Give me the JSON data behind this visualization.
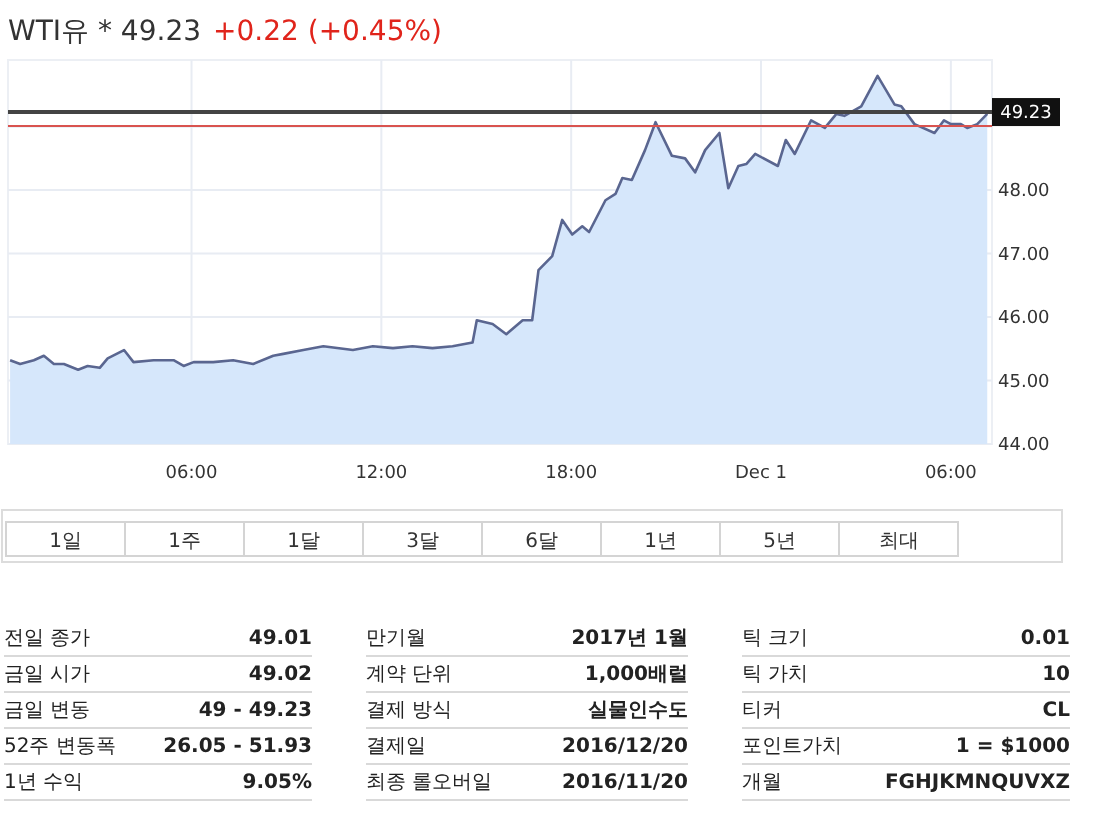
{
  "chart_data": {
    "type": "area",
    "title": "WTI유 * 49.23",
    "subtitle": "+0.22 (+0.45%)",
    "x": [
      "2016-11-30T00:16",
      "2016-11-30T00:35",
      "2016-11-30T01:01",
      "2016-11-30T01:20",
      "2016-11-30T01:39",
      "2016-11-30T01:58",
      "2016-11-30T02:25",
      "2016-11-30T02:43",
      "2016-11-30T03:06",
      "2016-11-30T03:21",
      "2016-11-30T03:52",
      "2016-11-30T04:10",
      "2016-11-30T04:48",
      "2016-11-30T05:26",
      "2016-11-30T05:45",
      "2016-11-30T06:04",
      "2016-11-30T06:41",
      "2016-11-30T07:19",
      "2016-11-30T07:57",
      "2016-11-30T08:35",
      "2016-11-30T08:54",
      "2016-11-30T09:32",
      "2016-11-30T10:10",
      "2016-11-30T11:06",
      "2016-11-30T11:44",
      "2016-11-30T12:22",
      "2016-11-30T12:59",
      "2016-11-30T13:37",
      "2016-11-30T14:15",
      "2016-11-30T14:53",
      "2016-11-30T15:01",
      "2016-11-30T15:31",
      "2016-11-30T15:57",
      "2016-11-30T16:28",
      "2016-11-30T16:46",
      "2016-11-30T16:58",
      "2016-11-30T17:24",
      "2016-11-30T17:43",
      "2016-11-30T18:02",
      "2016-11-30T18:21",
      "2016-11-30T18:34",
      "2016-11-30T19:05",
      "2016-11-30T19:24",
      "2016-11-30T19:37",
      "2016-11-30T19:55",
      "2016-11-30T20:20",
      "2016-11-30T20:40",
      "2016-11-30T21:11",
      "2016-11-30T21:36",
      "2016-11-30T21:55",
      "2016-11-30T22:14",
      "2016-11-30T22:41",
      "2016-11-30T22:58",
      "2016-11-30T23:17",
      "2016-11-30T23:32",
      "2016-11-30T23:49",
      "2016-12-01T00:32",
      "2016-12-01T00:47",
      "2016-12-01T01:04",
      "2016-12-01T01:35",
      "2016-12-01T02:01",
      "2016-12-01T02:23",
      "2016-12-01T02:38",
      "2016-12-01T03:10",
      "2016-12-01T03:41",
      "2016-12-01T04:13",
      "2016-12-01T04:26",
      "2016-12-01T04:51",
      "2016-12-01T05:29",
      "2016-12-01T05:47",
      "2016-12-01T06:00",
      "2016-12-01T06:19",
      "2016-12-01T06:31",
      "2016-12-01T06:50",
      "2016-12-01T07:09"
    ],
    "series": [
      {
        "color": "#5a6690",
        "values": [
          45.32,
          45.26,
          45.32,
          45.39,
          45.26,
          45.26,
          45.17,
          45.23,
          45.2,
          45.35,
          45.48,
          45.29,
          45.32,
          45.32,
          45.23,
          45.29,
          45.29,
          45.32,
          45.26,
          45.39,
          45.42,
          45.48,
          45.54,
          45.48,
          45.54,
          45.51,
          45.54,
          45.51,
          45.54,
          45.6,
          45.95,
          45.89,
          45.73,
          45.95,
          45.95,
          46.74,
          46.96,
          47.53,
          47.3,
          47.43,
          47.34,
          47.84,
          47.94,
          48.19,
          48.16,
          48.63,
          49.07,
          48.54,
          48.5,
          48.28,
          48.63,
          48.9,
          48.03,
          48.38,
          48.41,
          48.57,
          48.38,
          48.79,
          48.57,
          49.1,
          48.98,
          49.2,
          49.17,
          49.32,
          49.8,
          49.35,
          49.32,
          49.04,
          48.9,
          49.1,
          49.04,
          49.04,
          48.98,
          49.04,
          49.2
        ]
      }
    ],
    "xlim": [
      "2016-11-30T00:12",
      "2016-12-01T07:18"
    ],
    "xticks": [
      {
        "value": "2016-11-30T06:00",
        "label": "06:00"
      },
      {
        "value": "2016-11-30T12:00",
        "label": "12:00"
      },
      {
        "value": "2016-11-30T18:00",
        "label": "18:00"
      },
      {
        "value": "2016-12-01T00:00",
        "label": "Dec 1"
      },
      {
        "value": "2016-12-01T06:00",
        "label": "06:00"
      }
    ],
    "ylim": [
      44,
      50.05
    ],
    "yticks": [
      {
        "value": 44,
        "label": "44.00"
      },
      {
        "value": 45,
        "label": "45.00"
      },
      {
        "value": 46,
        "label": "46.00"
      },
      {
        "value": 47,
        "label": "47.00"
      },
      {
        "value": 48,
        "label": "48.00"
      },
      {
        "value": 49,
        "label": null
      }
    ],
    "ref_lines": [
      {
        "axis": "y",
        "value": 49.23,
        "label": "49.23",
        "color": "#444444"
      },
      {
        "axis": "y",
        "value": 49.01,
        "color": "#d9534f"
      }
    ],
    "grid": true,
    "annotations": [
      "1일",
      "1주",
      "1달",
      "3달",
      "6달",
      "1년",
      "5년",
      "최대",
      "전일 종가",
      "49.01",
      "금일 시가",
      "49.02",
      "금일 변동",
      "49 - 49.23",
      "52주 변동폭",
      "26.05 - 51.93",
      "1년 수익",
      "9.05%",
      "만기월",
      "2017년 1월",
      "계약 단위",
      "1,000배럴",
      "결제 방식",
      "실물인수도",
      "결제일",
      "2016/12/20",
      "최종 롤오버일",
      "2016/11/20",
      "틱 크기",
      "0.01",
      "틱 가치",
      "10",
      "티커",
      "CL",
      "포인트가치",
      "1 = $1000",
      "개월",
      "FGHJKMNQUVXZ"
    ]
  }
}
